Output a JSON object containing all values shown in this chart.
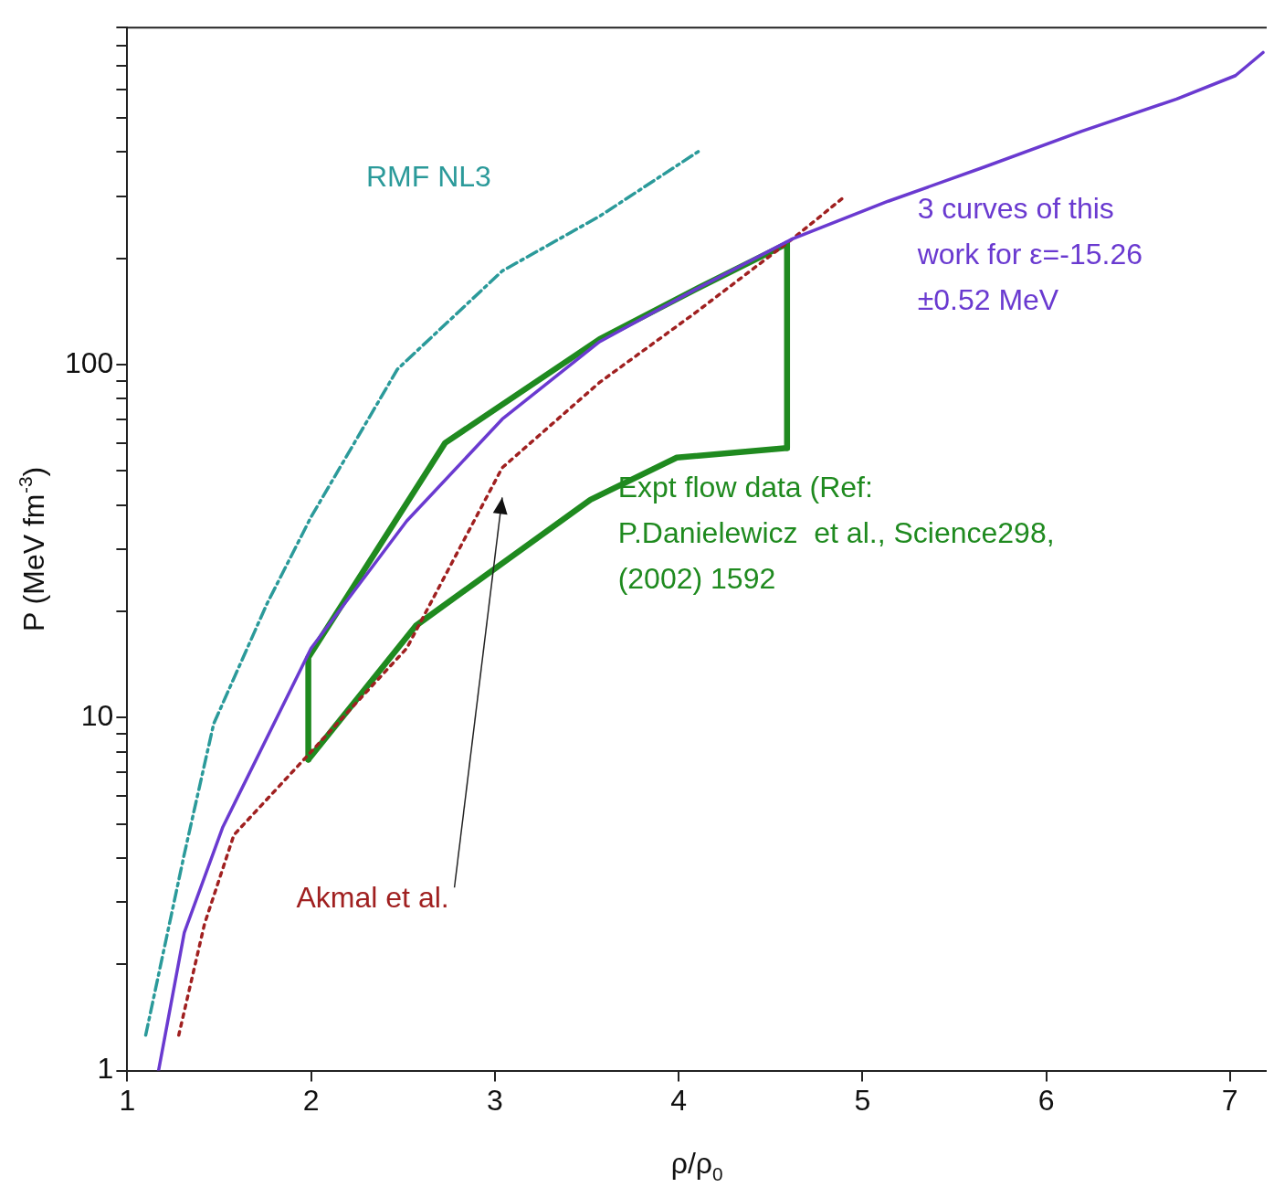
{
  "chart_data": {
    "type": "line",
    "xlabel": "ρ/ρ$_{0}$",
    "ylabel": "P (MeV fm$^{-3}$)",
    "log": "y",
    "grid": false,
    "legend": false,
    "marker": "none",
    "xlim": [
      1,
      7.2
    ],
    "xticks": [
      1,
      2,
      3,
      4,
      5,
      6,
      7
    ],
    "ylim": [
      1,
      900
    ],
    "yticks": [
      1,
      {
        "value": 2,
        "label": null
      },
      {
        "value": 3,
        "label": null
      },
      {
        "value": 4,
        "label": null
      },
      {
        "value": 5,
        "label": null
      },
      {
        "value": 6,
        "label": null
      },
      {
        "value": 7,
        "label": null
      },
      {
        "value": 8,
        "label": null
      },
      {
        "value": 9,
        "label": null
      },
      10,
      {
        "value": 20,
        "label": null
      },
      {
        "value": 30,
        "label": null
      },
      {
        "value": 40,
        "label": null
      },
      {
        "value": 50,
        "label": null
      },
      {
        "value": 60,
        "label": null
      },
      {
        "value": 70,
        "label": null
      },
      {
        "value": 80,
        "label": null
      },
      {
        "value": 90,
        "label": null
      },
      100,
      {
        "value": 200,
        "label": null
      },
      {
        "value": 300,
        "label": null
      },
      {
        "value": 400,
        "label": null
      },
      {
        "value": 500,
        "label": null
      },
      {
        "value": 600,
        "label": null
      },
      {
        "value": 700,
        "label": null
      },
      {
        "value": 800,
        "label": null
      },
      {
        "value": 900,
        "label": null
      }
    ],
    "series": [
      {
        "name": "RMF NL3",
        "color": "#2b9a9a",
        "line_style": "dashed",
        "x": [
          1.1,
          1.31,
          1.47,
          1.76,
          2.0,
          2.47,
          3.04,
          3.57,
          4.12
        ],
        "values": [
          1.26,
          4.1,
          9.6,
          21,
          37,
          97,
          184,
          263,
          405
        ]
      },
      {
        "name": "3 curves of this work for ε=-15.26 ±0.52 MeV",
        "color": "#6a3ad0",
        "line_style": "solid",
        "x": [
          1.17,
          1.31,
          1.52,
          2.0,
          2.52,
          3.04,
          3.57,
          4.09,
          4.62,
          5.14,
          5.66,
          6.19,
          6.71,
          7.03,
          7.18
        ],
        "values": [
          1,
          2.46,
          4.9,
          15.7,
          36,
          70,
          116,
          163,
          227,
          290,
          362,
          457,
          565,
          658,
          765
        ]
      },
      {
        "name": "Akmal et al.",
        "color": "#a02020",
        "line_style": "dotted",
        "x": [
          1.28,
          1.42,
          1.58,
          2.0,
          2.52,
          3.04,
          3.57,
          4.09,
          4.62,
          4.9
        ],
        "values": [
          1.26,
          2.6,
          4.65,
          8.0,
          15.7,
          51,
          89,
          140,
          227,
          298
        ]
      },
      {
        "name": "Expt flow data (Ref: P.Danielewicz  et al., Science298, (2002) 1592",
        "color": "#1f8a1f",
        "line_style": "solid",
        "x": [
          1.985,
          1.985,
          2.73,
          3.57,
          4.09,
          4.59,
          4.59
        ],
        "values": [
          7.6,
          14.8,
          60,
          118,
          163,
          220,
          58
        ]
      },
      {
        "color": "#1f8a1f",
        "line_style": "solid",
        "x": [
          1.985,
          2.57,
          3.52,
          3.99,
          4.59
        ],
        "values": [
          7.6,
          18.2,
          41.4,
          54.5,
          58
        ]
      }
    ]
  }
}
